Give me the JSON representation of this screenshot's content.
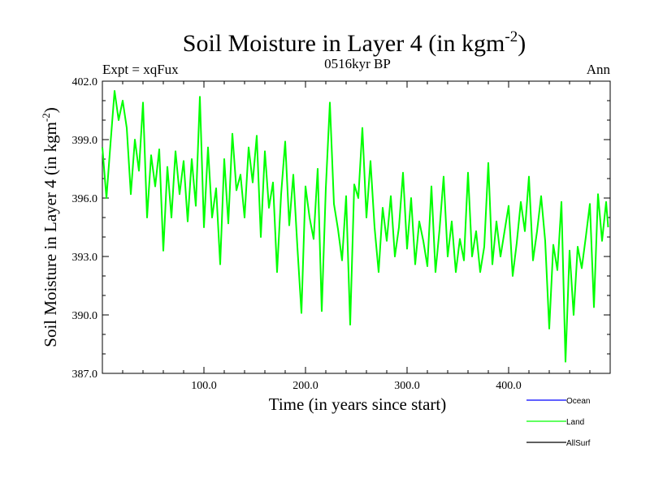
{
  "chart_data": {
    "type": "line",
    "title": "Soil Moisture in Layer 4 (in kgm",
    "title_sup": "-2",
    "title_close": ")",
    "subtitle_left": "Expt = xqFux",
    "subtitle_center": "0516kyr BP",
    "subtitle_right": "Ann",
    "xlabel": "Time (in years since start)",
    "ylabel": "Soil Moisture in Layer 4 (in kgm",
    "ylabel_sup": "-2",
    "ylabel_close": ")",
    "xlim": [
      0,
      500
    ],
    "ylim": [
      387.0,
      402.0
    ],
    "xticks": [
      100,
      200,
      300,
      400
    ],
    "xtick_labels": [
      "100.0",
      "200.0",
      "300.0",
      "400.0"
    ],
    "yticks": [
      387,
      390,
      393,
      396,
      399,
      402
    ],
    "ytick_labels": [
      "387.0",
      "390.0",
      "393.0",
      "396.0",
      "399.0",
      "402.0"
    ],
    "series": [
      {
        "name": "Ocean",
        "color": "#0000ff",
        "x": [],
        "values": []
      },
      {
        "name": "Land",
        "color": "#00ff00",
        "x": [
          0,
          4,
          8,
          12,
          16,
          20,
          24,
          28,
          32,
          36,
          40,
          44,
          48,
          52,
          56,
          60,
          64,
          68,
          72,
          76,
          80,
          84,
          88,
          92,
          96,
          100,
          104,
          108,
          112,
          116,
          120,
          124,
          128,
          132,
          136,
          140,
          144,
          148,
          152,
          156,
          160,
          164,
          168,
          172,
          176,
          180,
          184,
          188,
          192,
          196,
          200,
          204,
          208,
          212,
          216,
          220,
          224,
          228,
          232,
          236,
          240,
          244,
          248,
          252,
          256,
          260,
          264,
          268,
          272,
          276,
          280,
          284,
          288,
          292,
          296,
          300,
          304,
          308,
          312,
          316,
          320,
          324,
          328,
          332,
          336,
          340,
          344,
          348,
          352,
          356,
          360,
          364,
          368,
          372,
          376,
          380,
          384,
          388,
          392,
          396,
          400,
          404,
          408,
          412,
          416,
          420,
          424,
          428,
          432,
          436,
          440,
          444,
          448,
          452,
          456,
          460,
          464,
          468,
          472,
          476,
          480,
          484,
          488,
          492,
          496,
          498
        ],
        "values": [
          398.6,
          396.0,
          398.8,
          401.5,
          400.0,
          401.0,
          399.6,
          396.2,
          399.0,
          397.4,
          400.9,
          395.0,
          398.2,
          396.6,
          398.5,
          393.3,
          397.6,
          395.0,
          398.4,
          396.2,
          397.9,
          394.8,
          398.0,
          395.6,
          401.2,
          394.5,
          398.6,
          395.0,
          396.5,
          392.6,
          398.0,
          394.7,
          399.3,
          396.4,
          397.2,
          395.0,
          398.6,
          396.8,
          399.2,
          394.0,
          398.4,
          395.5,
          396.8,
          392.2,
          396.2,
          398.9,
          394.6,
          397.2,
          393.5,
          390.1,
          396.6,
          395.0,
          393.9,
          397.5,
          390.2,
          396.5,
          400.9,
          395.7,
          394.4,
          392.8,
          396.1,
          389.5,
          396.7,
          396.0,
          399.6,
          395.0,
          397.9,
          394.5,
          392.2,
          395.5,
          393.8,
          396.1,
          393.0,
          394.5,
          397.3,
          393.4,
          396.0,
          392.6,
          394.8,
          393.8,
          392.5,
          396.6,
          392.2,
          394.4,
          397.1,
          393.0,
          394.8,
          392.2,
          393.9,
          392.8,
          397.3,
          393.0,
          394.3,
          392.2,
          393.5,
          397.8,
          392.6,
          394.8,
          393.0,
          394.3,
          395.6,
          392.0,
          393.7,
          395.8,
          394.3,
          397.1,
          392.8,
          394.3,
          396.1,
          393.8,
          389.3,
          393.6,
          392.3,
          395.8,
          387.6,
          393.3,
          390.0,
          393.5,
          392.4,
          394.0,
          395.7,
          390.4,
          396.2,
          393.8,
          395.8,
          394.5
        ]
      },
      {
        "name": "AllSurf",
        "color": "#000000",
        "x": [],
        "values": []
      }
    ],
    "legend": [
      "Ocean",
      "Land",
      "AllSurf"
    ],
    "legend_position": "bottom-right",
    "grid": false
  }
}
